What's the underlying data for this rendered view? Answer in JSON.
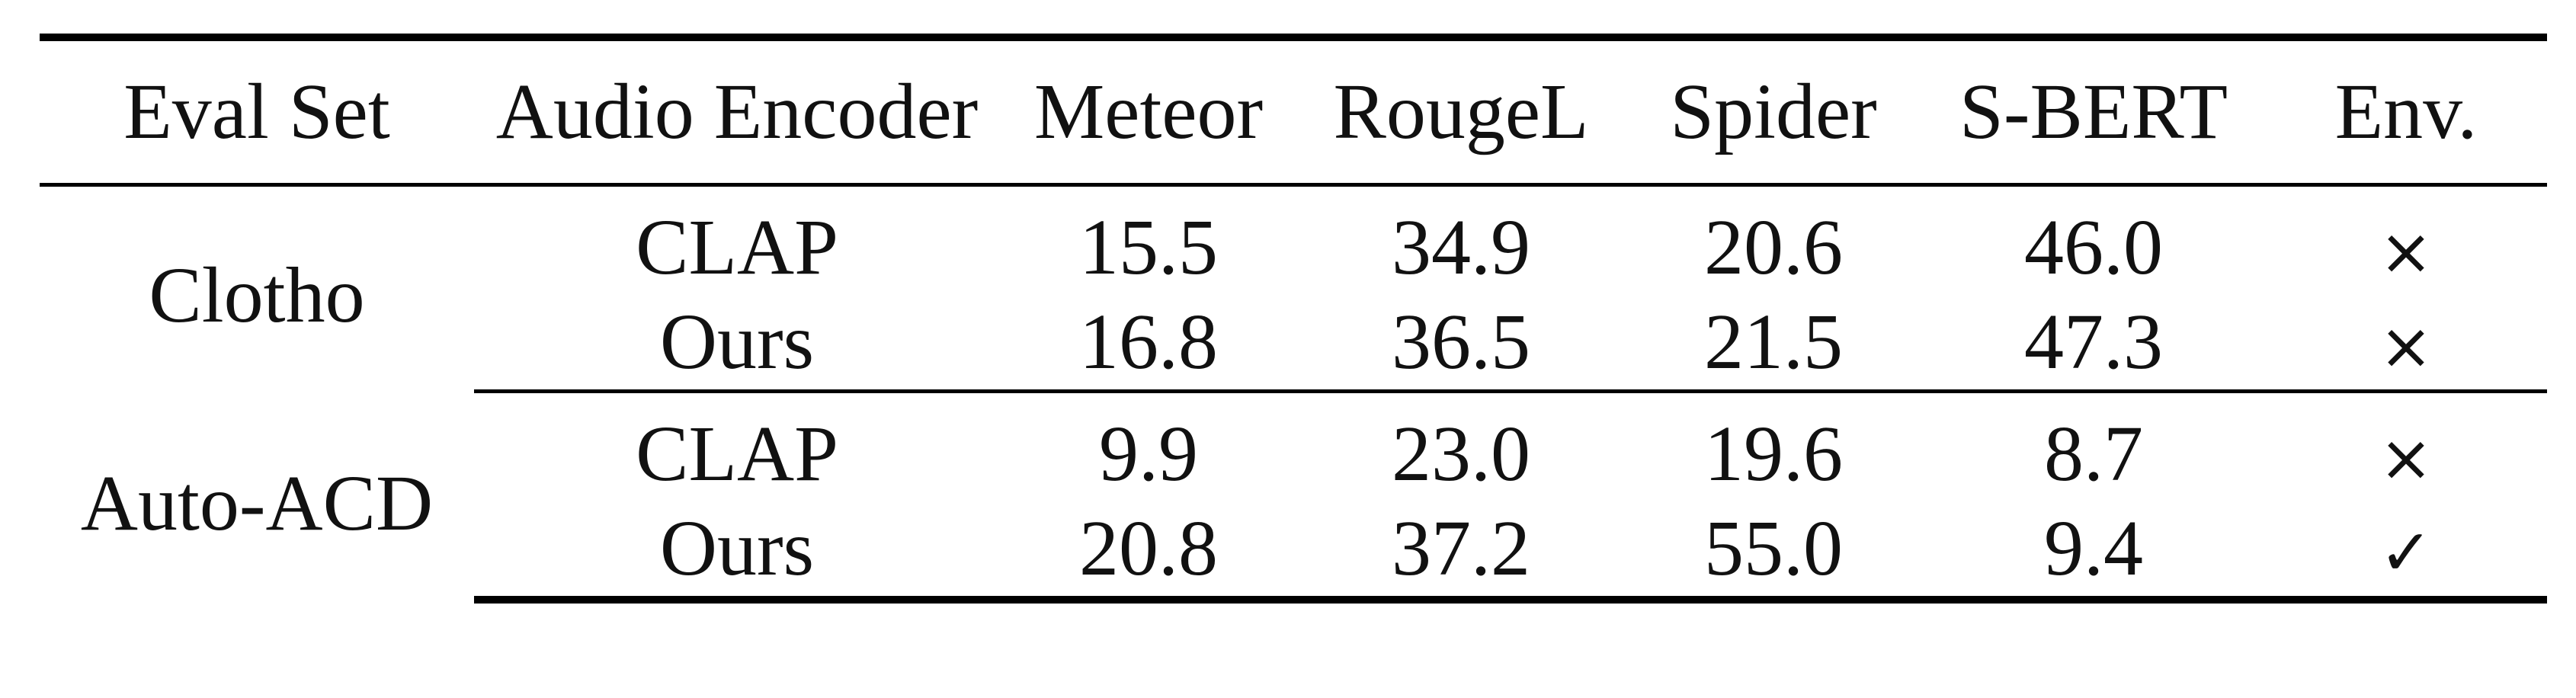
{
  "table": {
    "headers": [
      "Eval Set",
      "Audio Encoder",
      "Meteor",
      "RougeL",
      "Spider",
      "S-BERT",
      "Env."
    ],
    "groups": [
      {
        "eval_set": "Clotho",
        "rows": [
          {
            "encoder": "CLAP",
            "meteor": "15.5",
            "rougel": "34.9",
            "spider": "20.6",
            "sbert": "46.0",
            "env": "×"
          },
          {
            "encoder": "Ours",
            "meteor": "16.8",
            "rougel": "36.5",
            "spider": "21.5",
            "sbert": "47.3",
            "env": "×"
          }
        ]
      },
      {
        "eval_set": "Auto-ACD",
        "rows": [
          {
            "encoder": "CLAP",
            "meteor": "9.9",
            "rougel": "23.0",
            "spider": "19.6",
            "sbert": "8.7",
            "env": "×"
          },
          {
            "encoder": "Ours",
            "meteor": "20.8",
            "rougel": "37.2",
            "spider": "55.0",
            "sbert": "9.4",
            "env": "✓"
          }
        ]
      }
    ]
  }
}
